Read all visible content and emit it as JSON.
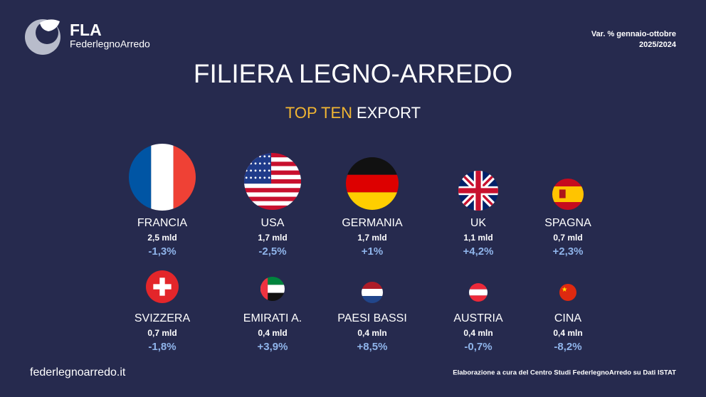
{
  "header": {
    "logo_short": "FLA",
    "logo_full": "FederlegnoArredo",
    "period_label": "Var. % gennaio-ottobre",
    "period_years": "2025/2024"
  },
  "title": "FILIERA LEGNO-ARREDO",
  "subtitle": {
    "highlight": "TOP TEN",
    "rest": "EXPORT"
  },
  "countries": [
    {
      "name": "FRANCIA",
      "value": "2,5 mld",
      "change": "-1,3%"
    },
    {
      "name": "USA",
      "value": "1,7 mld",
      "change": "-2,5%"
    },
    {
      "name": "GERMANIA",
      "value": "1,7 mld",
      "change": "+1%"
    },
    {
      "name": "UK",
      "value": "1,1 mld",
      "change": "+4,2%"
    },
    {
      "name": "SPAGNA",
      "value": "0,7 mld",
      "change": "+2,3%"
    },
    {
      "name": "SVIZZERA",
      "value": "0,7 mld",
      "change": "-1,8%"
    },
    {
      "name": "EMIRATI A.",
      "value": "0,4 mld",
      "change": "+3,9%"
    },
    {
      "name": "PAESI BASSI",
      "value": "0,4 mln",
      "change": "+8,5%"
    },
    {
      "name": "AUSTRIA",
      "value": "0,4 mln",
      "change": "-0,7%"
    },
    {
      "name": "CINA",
      "value": "0,4 mln",
      "change": "-8,2%"
    }
  ],
  "footer": {
    "website": "federlegnoarredo.it",
    "source": "Elaborazione a cura del Centro Studi FederlegnoArredo su Dati ISTAT"
  }
}
